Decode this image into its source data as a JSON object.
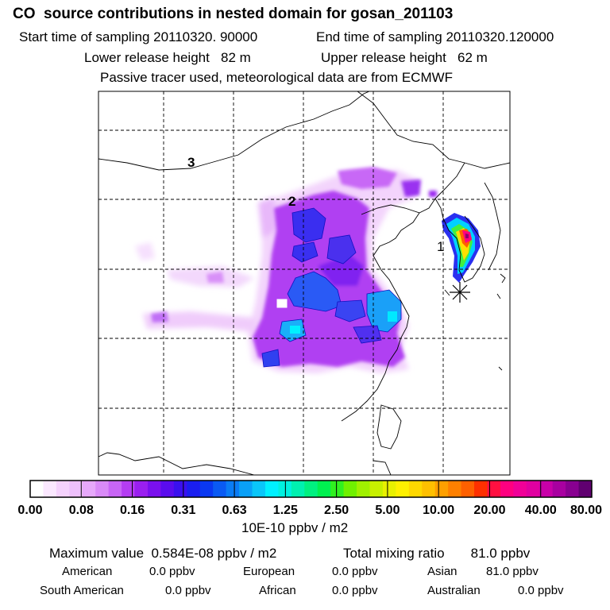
{
  "header": {
    "title": "CO  source contributions in nested domain for gosan_201103",
    "start_time": "Start time of sampling 20110320. 90000",
    "end_time": "End time of sampling 20110320.120000",
    "lower_release": "Lower release height   82 m",
    "upper_release": "Upper release height   62 m",
    "tracer_note": "Passive tracer used, meteorological data are from ECMWF"
  },
  "map": {
    "region_labels": [
      "1",
      "2",
      "3"
    ],
    "receptor_marker": "asterisk",
    "grid": "dashed"
  },
  "colorbar": {
    "tick_labels": [
      "0.00",
      "0.08",
      "0.16",
      "0.31",
      "0.63",
      "1.25",
      "2.50",
      "5.00",
      "10.00",
      "20.00",
      "40.00",
      "80.00"
    ],
    "units": "10E-10 ppbv / m2",
    "colors": [
      "#ffffff",
      "#fbe8ff",
      "#f5d2fd",
      "#eec0fc",
      "#e6a8fa",
      "#d98af7",
      "#c865f5",
      "#b43df2",
      "#9a1ff0",
      "#7a10ee",
      "#5a0ced",
      "#3a10ee",
      "#1a1eef",
      "#0a38f1",
      "#0a5af3",
      "#0a7cf5",
      "#0aa0f7",
      "#0ac6f9",
      "#00f0ff",
      "#00f0e0",
      "#00f0b0",
      "#00f080",
      "#00f050",
      "#30f020",
      "#70f000",
      "#a0f000",
      "#c8f000",
      "#e8f000",
      "#fff000",
      "#ffd800",
      "#ffc000",
      "#ffa000",
      "#ff8000",
      "#ff6000",
      "#ff3000",
      "#ff1040",
      "#ff0080",
      "#f00098",
      "#e000a0",
      "#c800a8",
      "#a800a0",
      "#880090",
      "#600070"
    ]
  },
  "summary": {
    "max_value": "Maximum value  0.584E-08 ppbv / m2",
    "total_mixing": "Total mixing ratio       81.0 ppbv",
    "american_label": "American",
    "american_value": "0.0 ppbv",
    "european_label": "European",
    "european_value": "0.0 ppbv",
    "asian_label": "Asian",
    "asian_value": "81.0 ppbv",
    "south_american_label": "South American",
    "south_american_value": "0.0 ppbv",
    "african_label": "African",
    "african_value": "0.0 ppbv",
    "australian_label": "Australian",
    "australian_value": "0.0 ppbv"
  }
}
